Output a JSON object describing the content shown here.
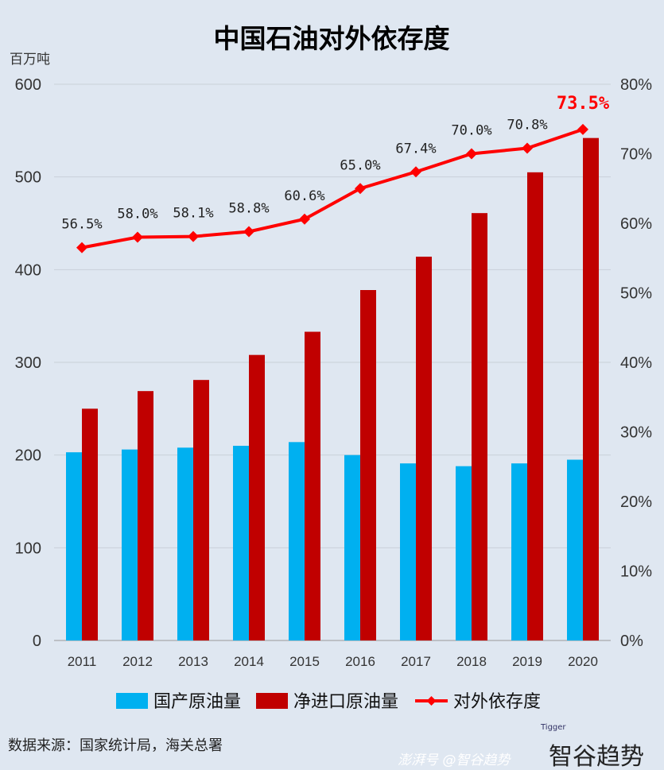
{
  "chart_data": {
    "type": "bar+line",
    "title": "中国石油对外依存度",
    "y_left_unit": "百万吨",
    "categories": [
      "2011",
      "2012",
      "2013",
      "2014",
      "2015",
      "2016",
      "2017",
      "2018",
      "2019",
      "2020"
    ],
    "series": [
      {
        "name": "国产原油量",
        "type": "bar",
        "axis": "left",
        "color": "#00b0f0",
        "values": [
          203,
          206,
          208,
          210,
          214,
          200,
          191,
          188,
          191,
          195
        ]
      },
      {
        "name": "净进口原油量",
        "type": "bar",
        "axis": "left",
        "color": "#c00000",
        "values": [
          250,
          269,
          281,
          308,
          333,
          378,
          414,
          461,
          505,
          542
        ]
      },
      {
        "name": "对外依存度",
        "type": "line",
        "axis": "right",
        "color": "#ff0000",
        "values": [
          56.5,
          58.0,
          58.1,
          58.8,
          60.6,
          65.0,
          67.4,
          70.0,
          70.8,
          73.5
        ],
        "labels": [
          "56.5%",
          "58.0%",
          "58.1%",
          "58.8%",
          "60.6%",
          "65.0%",
          "67.4%",
          "70.0%",
          "70.8%",
          "73.5%"
        ]
      }
    ],
    "ylim_left": [
      0,
      600
    ],
    "yticks_left": [
      "0",
      "100",
      "200",
      "300",
      "400",
      "500",
      "600"
    ],
    "ylim_right": [
      0,
      80
    ],
    "yticks_right": [
      "0%",
      "10%",
      "20%",
      "30%",
      "40%",
      "50%",
      "60%",
      "70%",
      "80%"
    ],
    "grid": true,
    "legend_position": "bottom",
    "source": "数据来源：国家统计局，海关总署"
  },
  "watermark": {
    "logo": "智谷趋势",
    "logo_small": "Tigger",
    "platform": "澎湃号 @智谷趋势"
  }
}
